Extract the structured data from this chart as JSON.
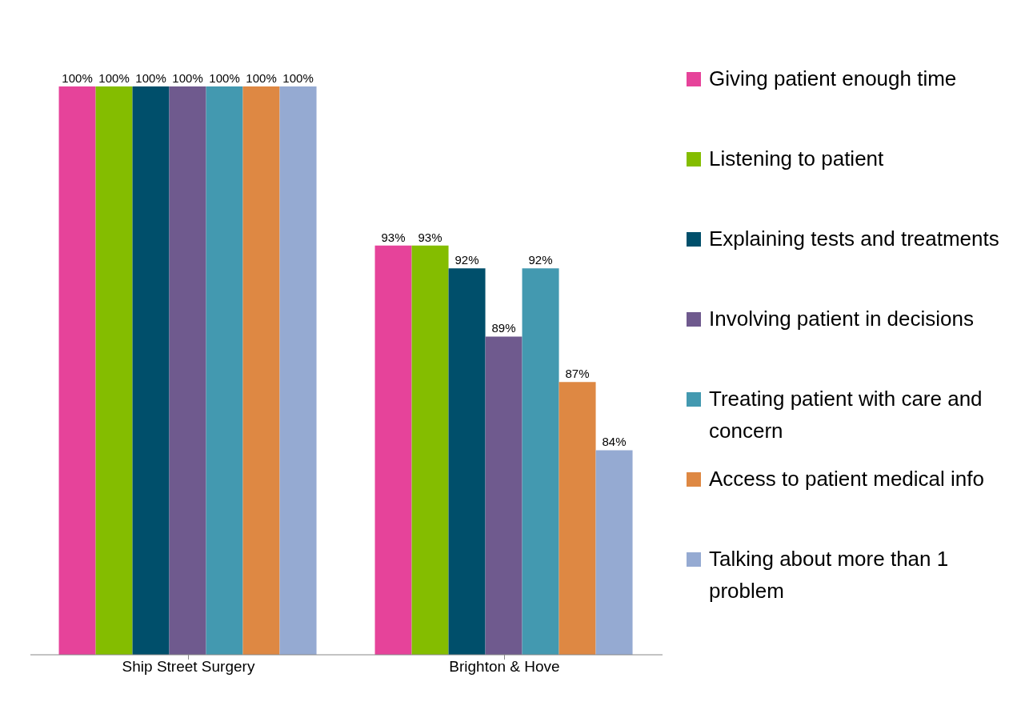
{
  "chart_data": {
    "type": "bar",
    "categories": [
      "Ship Street Surgery",
      "Brighton & Hove"
    ],
    "ylim": [
      75,
      100
    ],
    "legend": "right",
    "data_labels": true,
    "series": [
      {
        "name": "Giving patient enough time",
        "color": "#e6439a",
        "values": [
          100,
          93
        ],
        "value_labels": [
          "100%",
          "93%"
        ]
      },
      {
        "name": "Listening to patient",
        "color": "#84bd00",
        "values": [
          100,
          93
        ],
        "value_labels": [
          "100%",
          "93%"
        ]
      },
      {
        "name": "Explaining tests and treatments",
        "color": "#004f6b",
        "values": [
          100,
          92
        ],
        "value_labels": [
          "100%",
          "92%"
        ]
      },
      {
        "name": "Involving patient in decisions",
        "color": "#6f5a8e",
        "values": [
          100,
          89
        ],
        "value_labels": [
          "100%",
          "89%"
        ]
      },
      {
        "name": "Treating patient with care and concern",
        "color": "#4399b0",
        "values": [
          100,
          92
        ],
        "value_labels": [
          "100%",
          "92%"
        ]
      },
      {
        "name": "Access to patient medical info",
        "color": "#de8843",
        "values": [
          100,
          87
        ],
        "value_labels": [
          "100%",
          "87%"
        ]
      },
      {
        "name": "Talking about more than 1 problem",
        "color": "#95aad2",
        "values": [
          100,
          84
        ],
        "value_labels": [
          "100%",
          "84%"
        ]
      }
    ]
  }
}
